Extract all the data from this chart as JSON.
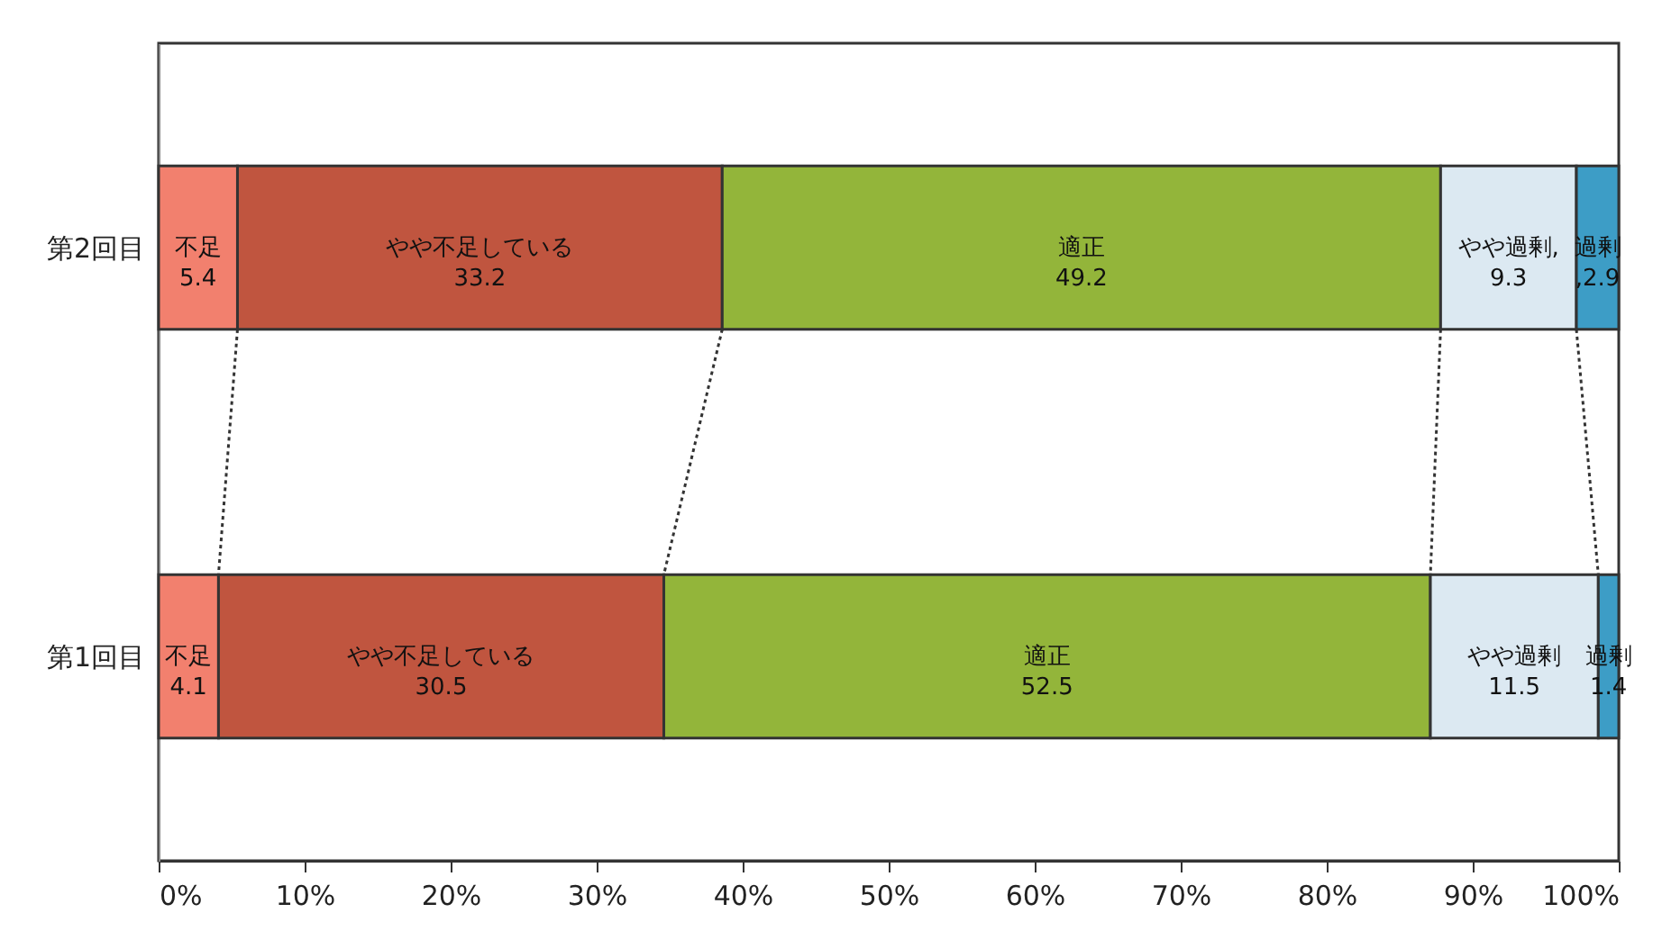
{
  "chart_data": {
    "type": "bar",
    "orientation": "horizontal",
    "stacked": true,
    "categories": [
      "第2回目",
      "第1回目"
    ],
    "series": [
      {
        "color": "#f2806e",
        "values": [
          5.4,
          4.1
        ],
        "value_labels": [
          "不足\n5.4",
          "不足\n4.1"
        ]
      },
      {
        "color": "#c0553f",
        "values": [
          33.2,
          30.5
        ],
        "value_labels": [
          "やや不足している\n33.2",
          "やや不足している\n30.5"
        ]
      },
      {
        "color": "#93b53a",
        "values": [
          49.2,
          52.5
        ],
        "value_labels": [
          "適正\n49.2",
          "適正\n52.5"
        ]
      },
      {
        "color": "#dce9f2",
        "values": [
          9.3,
          11.5
        ],
        "value_labels": [
          "やや過剰,\n9.3",
          "やや過剰\n11.5"
        ]
      },
      {
        "color": "#3d9dc6",
        "values": [
          2.9,
          1.4
        ],
        "value_labels": [
          "過剰\n,2.9",
          "過剰\n1.4"
        ]
      }
    ],
    "xlim": [
      0,
      100
    ],
    "xticks": [
      {
        "value": 0,
        "label": "0%"
      },
      {
        "value": 10,
        "label": "10%"
      },
      {
        "value": 20,
        "label": "20%"
      },
      {
        "value": 30,
        "label": "30%"
      },
      {
        "value": 40,
        "label": "40%"
      },
      {
        "value": 50,
        "label": "50%"
      },
      {
        "value": 60,
        "label": "60%"
      },
      {
        "value": 70,
        "label": "70%"
      },
      {
        "value": 80,
        "label": "80%"
      },
      {
        "value": 90,
        "label": "90%"
      },
      {
        "value": 100,
        "label": "100%"
      }
    ]
  }
}
